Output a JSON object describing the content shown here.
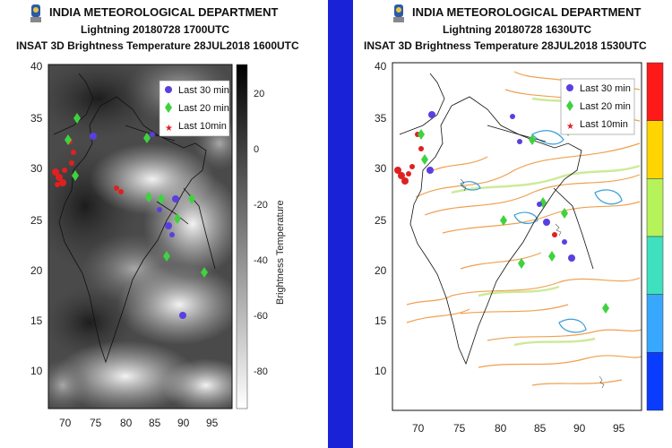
{
  "left_panel": {
    "org": "INDIA METEOROLOGICAL DEPARTMENT",
    "subtitle": "Lightning 20180728   1700UTC",
    "subtitle2": "INSAT 3D Brightness Temperature 28JUL2018   1600UTC",
    "yticks": [
      "40",
      "35",
      "30",
      "25",
      "20",
      "15",
      "10"
    ],
    "xticks": [
      "70",
      "75",
      "80",
      "85",
      "90",
      "95"
    ],
    "colorbar_label": "Brightness Temperature",
    "colorbar_ticks": [
      "20",
      "0",
      "-20",
      "-40",
      "-60",
      "-80"
    ],
    "legend": [
      {
        "label": "Last 30 min",
        "color": "#5a3fe0",
        "shape": "circle"
      },
      {
        "label": "Last 20 min",
        "color": "#3fd23f",
        "shape": "diamond"
      },
      {
        "label": "Last 10min",
        "color": "#e02020",
        "shape": "star"
      }
    ]
  },
  "right_panel": {
    "org": "INDIA METEOROLOGICAL DEPARTMENT",
    "subtitle": "Lightning 20180728   1630UTC",
    "subtitle2": "INSAT 3D Brightness Temperature 28JUL2018   1530UTC",
    "yticks": [
      "40",
      "35",
      "30",
      "25",
      "20",
      "15",
      "10"
    ],
    "xticks": [
      "70",
      "75",
      "80",
      "85",
      "90",
      "95"
    ],
    "colorbar_colors": [
      "#ff1a1a",
      "#ffd400",
      "#b6f25a",
      "#3fe0c0",
      "#38a8ff",
      "#0a3cff"
    ],
    "legend": [
      {
        "label": "Last 30 min",
        "color": "#5a3fe0",
        "shape": "circle"
      },
      {
        "label": "Last 20 min",
        "color": "#3fd23f",
        "shape": "diamond"
      },
      {
        "label": "Last 10min",
        "color": "#e02020",
        "shape": "star"
      }
    ]
  },
  "colors": {
    "divider": "#1a22d8",
    "cloud_dark": "#2e2e2e",
    "cloud_light": "#e8e8e8",
    "contour_orange": "#f0a050",
    "contour_green": "#c8e890",
    "contour_blue": "#3aa0d8"
  },
  "icons": {
    "emblem": "imd-emblem-icon"
  }
}
